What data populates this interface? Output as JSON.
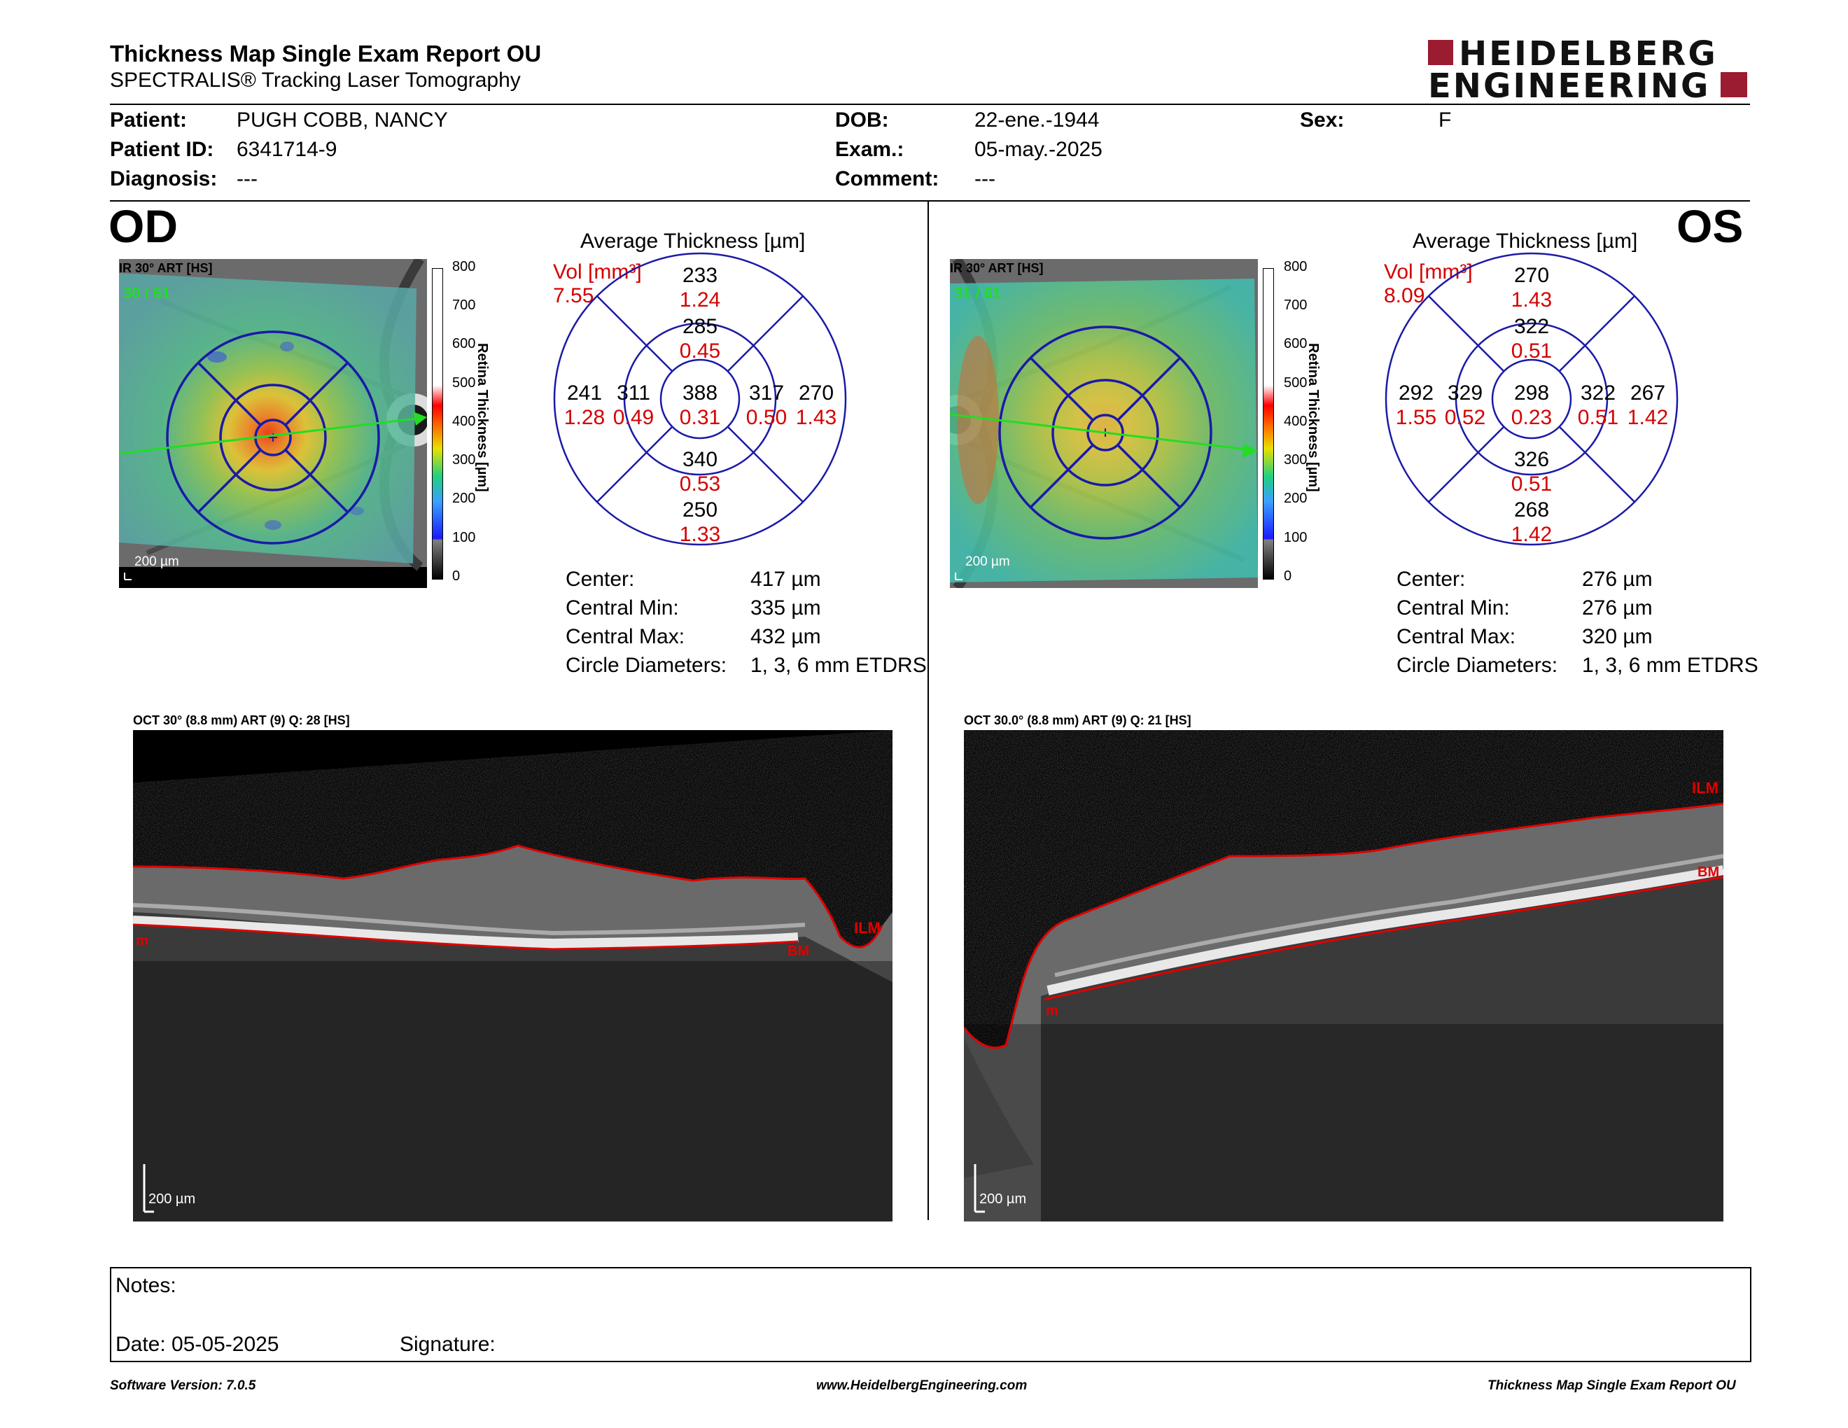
{
  "header": {
    "title": "Thickness Map Single Exam Report OU",
    "subtitle": "SPECTRALIS® Tracking Laser Tomography",
    "logo_line1": "HEIDELBERG",
    "logo_line2": "ENGINEERING"
  },
  "patient": {
    "patient_label": "Patient:",
    "patient_value": "PUGH COBB, NANCY",
    "id_label": "Patient ID:",
    "id_value": "6341714-9",
    "diag_label": "Diagnosis:",
    "diag_value": "---",
    "dob_label": "DOB:",
    "dob_value": "22-ene.-1944",
    "exam_label": "Exam.:",
    "exam_value": "05-may.-2025",
    "comment_label": "Comment:",
    "comment_value": "---",
    "sex_label": "Sex:",
    "sex_value": "F"
  },
  "od": {
    "eye": "OD",
    "ir_label": "IR 30° ART [HS]",
    "ir_counter": "30 / 61",
    "scale": "200 µm",
    "colorbar_ticks": [
      "800",
      "700",
      "600",
      "500",
      "400",
      "300",
      "200",
      "100",
      "0"
    ],
    "colorbar_title": "Retina Thickness [µm]",
    "avg_title": "Average Thickness [µm]",
    "vol_label": "Vol [mm³]",
    "vol_value": "7.55",
    "etdrs": {
      "outer_top": "233",
      "outer_top_vol": "1.24",
      "inner_top": "285",
      "inner_top_vol": "0.45",
      "outer_left": "241",
      "outer_left_vol": "1.28",
      "inner_left": "311",
      "inner_left_vol": "0.49",
      "center": "388",
      "center_vol": "0.31",
      "inner_right": "317",
      "inner_right_vol": "0.50",
      "outer_right": "270",
      "outer_right_vol": "1.43",
      "inner_bottom": "340",
      "inner_bottom_vol": "0.53",
      "outer_bottom": "250",
      "outer_bottom_vol": "1.33"
    },
    "stats": [
      {
        "label": "Center:",
        "value": "417 µm"
      },
      {
        "label": "Central Min:",
        "value": "335 µm"
      },
      {
        "label": "Central Max:",
        "value": "432 µm"
      },
      {
        "label": "Circle Diameters:",
        "value": "1, 3, 6 mm ETDRS"
      }
    ],
    "oct_label": "OCT 30° (8.8 mm) ART (9) Q: 28 [HS]",
    "oct_scale": "200 µm",
    "ilm": "ILM",
    "bm": "BM",
    "m": "m"
  },
  "os": {
    "eye": "OS",
    "ir_label": "IR 30° ART [HS]",
    "ir_counter": "31 / 61",
    "scale": "200 µm",
    "colorbar_ticks": [
      "800",
      "700",
      "600",
      "500",
      "400",
      "300",
      "200",
      "100",
      "0"
    ],
    "colorbar_title": "Retina Thickness [µm]",
    "avg_title": "Average Thickness [µm]",
    "vol_label": "Vol [mm³]",
    "vol_value": "8.09",
    "etdrs": {
      "outer_top": "270",
      "outer_top_vol": "1.43",
      "inner_top": "322",
      "inner_top_vol": "0.51",
      "outer_left": "292",
      "outer_left_vol": "1.55",
      "inner_left": "329",
      "inner_left_vol": "0.52",
      "center": "298",
      "center_vol": "0.23",
      "inner_right": "322",
      "inner_right_vol": "0.51",
      "outer_right": "267",
      "outer_right_vol": "1.42",
      "inner_bottom": "326",
      "inner_bottom_vol": "0.51",
      "outer_bottom": "268",
      "outer_bottom_vol": "1.42"
    },
    "stats": [
      {
        "label": "Center:",
        "value": "276 µm"
      },
      {
        "label": "Central Min:",
        "value": "276 µm"
      },
      {
        "label": "Central Max:",
        "value": "320 µm"
      },
      {
        "label": "Circle Diameters:",
        "value": "1, 3, 6 mm ETDRS"
      }
    ],
    "oct_label": "OCT 30.0° (8.8 mm) ART (9) Q: 21 [HS]",
    "oct_scale": "200 µm",
    "ilm": "ILM",
    "bm": "BM",
    "m": "m"
  },
  "notes": {
    "notes_label": "Notes:",
    "date_label": "Date: 05-05-2025",
    "signature_label": "Signature:"
  },
  "footer": {
    "software": "Software Version: 7.0.5",
    "website": "www.HeidelbergEngineering.com",
    "report": "Thickness Map Single Exam Report OU"
  },
  "colors": {
    "brand_red": "#9b1b30",
    "etdrs_blue": "#1a1aa8",
    "value_red": "#d40000",
    "segment_red": "#e00000",
    "tracking_green": "#22dd22"
  }
}
